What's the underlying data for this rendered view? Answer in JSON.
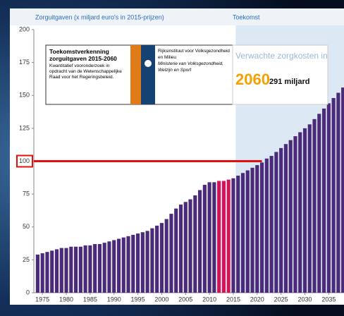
{
  "chart_data": {
    "type": "bar",
    "title": "Zorguitgaven (x miljard euro's in 2015-prijzen)",
    "future_label": "Toekomst",
    "x": [
      1974,
      1975,
      1976,
      1977,
      1978,
      1979,
      1980,
      1981,
      1982,
      1983,
      1984,
      1985,
      1986,
      1987,
      1988,
      1989,
      1990,
      1991,
      1992,
      1993,
      1994,
      1995,
      1996,
      1997,
      1998,
      1999,
      2000,
      2001,
      2002,
      2003,
      2004,
      2005,
      2006,
      2007,
      2008,
      2009,
      2010,
      2011,
      2012,
      2013,
      2014,
      2015,
      2016,
      2017,
      2018,
      2019,
      2020,
      2021,
      2022,
      2023,
      2024,
      2025,
      2026,
      2027,
      2028,
      2029,
      2030,
      2031,
      2032,
      2033,
      2034,
      2035,
      2036,
      2037,
      2038
    ],
    "values": [
      29,
      30,
      31,
      32,
      33,
      34,
      34,
      35,
      35,
      35,
      36,
      36,
      37,
      37,
      38,
      39,
      40,
      41,
      42,
      43,
      44,
      45,
      46,
      47,
      49,
      51,
      53,
      56,
      60,
      64,
      67,
      69,
      71,
      74,
      78,
      82,
      84,
      84,
      85,
      85,
      86,
      87,
      89,
      91,
      93,
      95,
      97,
      99,
      102,
      104,
      107,
      110,
      113,
      116,
      119,
      122,
      125,
      128,
      132,
      136,
      140,
      144,
      148,
      152,
      156
    ],
    "color": "#4b2a7b",
    "highlight_color": "#d4145a",
    "highlight_range": [
      2012,
      2014
    ],
    "future_start": 2015.5,
    "reference_line": {
      "value": 100,
      "end_x": 2021,
      "color": "#e01010"
    },
    "xlim": [
      1973.2,
      2038.2
    ],
    "xticks": [
      1975,
      1980,
      1985,
      1990,
      1995,
      2000,
      2005,
      2010,
      2015,
      2020,
      2025,
      2030,
      2035
    ],
    "ylim": [
      0,
      200
    ],
    "yticks": [
      0,
      25,
      50,
      75,
      100,
      125,
      150,
      175,
      200
    ],
    "info_box": {
      "title": "Toekomstverkenning zorguitgaven 2015-2060",
      "text": "Kwantitatief vooronderzoek in opdracht van de Wetenschappelijke Raad voor het Regeringsbeleid.",
      "org1": "Rijksinstituut voor Volksgezondheid en Milieu",
      "org2": "Ministerie van Volksgezondheid, Welzijn en Sport"
    },
    "callout": {
      "label": "Verwachte zorgkosten in",
      "year": "2060",
      "amount": "291 miljard"
    }
  }
}
